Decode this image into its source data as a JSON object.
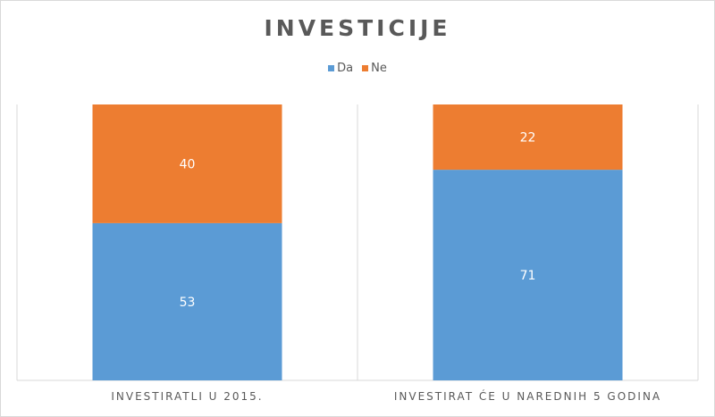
{
  "chart_data": {
    "type": "bar",
    "stacked": true,
    "title": "INVESTICIJE",
    "categories": [
      "INVESTIRATLI U 2015.",
      "INVESTIRAT ĆE U NAREDNIH 5 GODINA"
    ],
    "series": [
      {
        "name": "Da",
        "color": "#5b9bd5",
        "values": [
          53,
          71
        ]
      },
      {
        "name": "Ne",
        "color": "#ed7d31",
        "values": [
          40,
          22
        ]
      }
    ],
    "ylim": [
      0,
      93
    ],
    "legend_position": "top-center",
    "grid": false,
    "data_labels": true
  }
}
